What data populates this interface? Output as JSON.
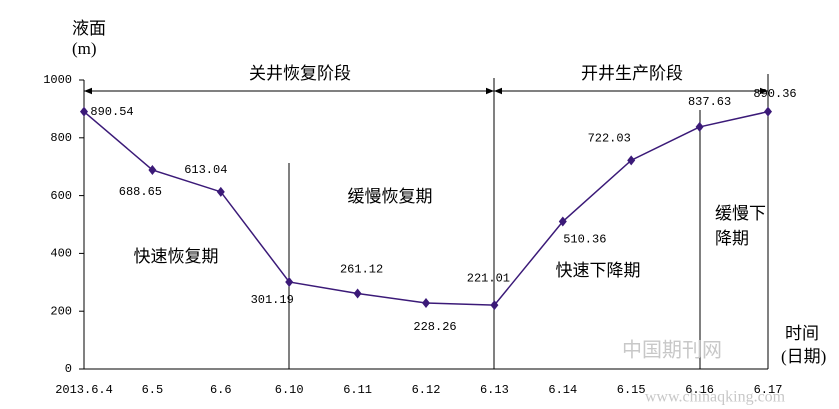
{
  "chart_data": {
    "type": "line",
    "y_label": [
      "液面",
      "(m)"
    ],
    "x_label": [
      "时间",
      "(日期)"
    ],
    "categories": [
      "2013.6.4",
      "6.5",
      "6.6",
      "6.10",
      "6.11",
      "6.12",
      "6.13",
      "6.14",
      "6.15",
      "6.16",
      "6.17"
    ],
    "series": [
      {
        "color": "#3b1a78",
        "values": [
          890.54,
          688.65,
          613.04,
          301.19,
          261.12,
          228.26,
          221.01,
          510.36,
          722.03,
          837.63,
          890.36
        ]
      }
    ],
    "ylim": [
      0,
      1000
    ],
    "yticks": [
      0,
      200,
      400,
      600,
      800,
      1000
    ],
    "grid": false,
    "annotations": {
      "stages": [
        "关井恢复阶段",
        "开井生产阶段"
      ],
      "periods": [
        "快速恢复期",
        "缓慢恢复期",
        "快速下降期"
      ],
      "last_period": [
        "缓慢下",
        "降期"
      ]
    },
    "watermark": [
      "中国期刊网",
      "www.chinaqking.com"
    ]
  }
}
